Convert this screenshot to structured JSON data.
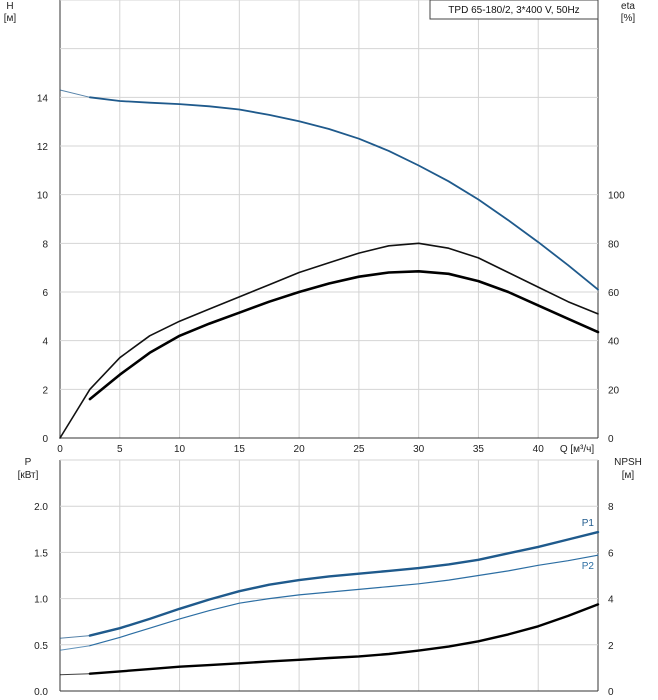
{
  "chart_data": [
    {
      "type": "line",
      "title": "TPD 65-180/2, 3*400 V, 50Hz",
      "xlabel": "Q [м³/ч]",
      "xlim": [
        0,
        45
      ],
      "xticks": [
        0,
        5,
        10,
        15,
        20,
        25,
        30,
        35,
        40
      ],
      "grid": true,
      "left_axis": {
        "label_line1": "H",
        "label_line2": "[м]",
        "ylim": [
          0,
          18
        ],
        "ticks": [
          0,
          2,
          4,
          6,
          8,
          10,
          12,
          14
        ]
      },
      "right_axis": {
        "label_line1": "eta",
        "label_line2": "[%]",
        "ylim": [
          0,
          180
        ],
        "ticks": [
          0,
          20,
          40,
          60,
          80,
          100
        ]
      },
      "series": [
        {
          "name": "",
          "axis": "left",
          "color": "#1f5a8c",
          "points": [
            [
              0,
              14.3
            ],
            [
              2.5,
              14.0
            ],
            [
              5,
              13.85
            ],
            [
              7.5,
              13.78
            ],
            [
              10,
              13.72
            ],
            [
              12.5,
              13.63
            ],
            [
              15,
              13.5
            ],
            [
              17.5,
              13.28
            ],
            [
              20,
              13.02
            ],
            [
              22.5,
              12.7
            ],
            [
              25,
              12.3
            ],
            [
              27.5,
              11.8
            ],
            [
              30,
              11.2
            ],
            [
              32.5,
              10.55
            ],
            [
              35,
              9.8
            ],
            [
              37.5,
              8.95
            ],
            [
              40,
              8.05
            ],
            [
              42.5,
              7.1
            ],
            [
              45,
              6.1
            ]
          ]
        },
        {
          "name": "",
          "axis": "right",
          "color": "#111111",
          "points": [
            [
              0,
              0
            ],
            [
              1,
              8
            ],
            [
              2.5,
              20
            ],
            [
              5,
              33
            ],
            [
              7.5,
              42
            ],
            [
              10,
              48
            ],
            [
              12.5,
              53
            ],
            [
              15,
              58
            ],
            [
              17.5,
              63
            ],
            [
              20,
              68
            ],
            [
              22.5,
              72
            ],
            [
              25,
              76
            ],
            [
              27.5,
              79
            ],
            [
              30,
              80
            ],
            [
              32.5,
              78
            ],
            [
              35,
              74
            ],
            [
              37.5,
              68
            ],
            [
              40,
              62
            ],
            [
              42.5,
              56
            ],
            [
              45,
              51
            ]
          ]
        },
        {
          "name": "",
          "axis": "right",
          "color": "#000000",
          "points": [
            [
              2.5,
              16
            ],
            [
              5,
              26
            ],
            [
              7.5,
              35
            ],
            [
              10,
              42
            ],
            [
              12.5,
              47
            ],
            [
              15,
              51.5
            ],
            [
              17.5,
              56
            ],
            [
              20,
              60
            ],
            [
              22.5,
              63.5
            ],
            [
              25,
              66.3
            ],
            [
              27.5,
              68
            ],
            [
              30,
              68.5
            ],
            [
              32.5,
              67.5
            ],
            [
              35,
              64.5
            ],
            [
              37.5,
              60
            ],
            [
              40,
              54.5
            ],
            [
              42.5,
              49
            ],
            [
              45,
              43.5
            ]
          ]
        }
      ]
    },
    {
      "type": "line",
      "xlim": [
        0,
        45
      ],
      "xticks": [
        0,
        5,
        10,
        15,
        20,
        25,
        30,
        35,
        40
      ],
      "grid": true,
      "left_axis": {
        "label_line1": "P",
        "label_line2": "[кВт]",
        "ylim": [
          0,
          2.5
        ],
        "ticks": [
          "0.0",
          "0.5",
          "1.0",
          "1.5",
          "2.0"
        ]
      },
      "right_axis": {
        "label_line1": "NPSH",
        "label_line2": "[м]",
        "ylim": [
          0,
          10
        ],
        "ticks": [
          0,
          2,
          4,
          6,
          8
        ]
      },
      "series": [
        {
          "name": "P1",
          "axis": "left",
          "color": "#1f5a8c",
          "points": [
            [
              0,
              0.57
            ],
            [
              2.5,
              0.6
            ],
            [
              5,
              0.68
            ],
            [
              7.5,
              0.78
            ],
            [
              10,
              0.89
            ],
            [
              12.5,
              0.99
            ],
            [
              15,
              1.08
            ],
            [
              17.5,
              1.15
            ],
            [
              20,
              1.2
            ],
            [
              22.5,
              1.24
            ],
            [
              25,
              1.27
            ],
            [
              27.5,
              1.3
            ],
            [
              30,
              1.33
            ],
            [
              32.5,
              1.37
            ],
            [
              35,
              1.42
            ],
            [
              37.5,
              1.49
            ],
            [
              40,
              1.56
            ],
            [
              42.5,
              1.64
            ],
            [
              45,
              1.72
            ]
          ]
        },
        {
          "name": "P2",
          "axis": "left",
          "color": "#2c6ea3",
          "points": [
            [
              0,
              0.44
            ],
            [
              2.5,
              0.49
            ],
            [
              5,
              0.58
            ],
            [
              7.5,
              0.68
            ],
            [
              10,
              0.78
            ],
            [
              12.5,
              0.87
            ],
            [
              15,
              0.95
            ],
            [
              17.5,
              1.0
            ],
            [
              20,
              1.04
            ],
            [
              22.5,
              1.07
            ],
            [
              25,
              1.1
            ],
            [
              27.5,
              1.13
            ],
            [
              30,
              1.16
            ],
            [
              32.5,
              1.2
            ],
            [
              35,
              1.25
            ],
            [
              37.5,
              1.3
            ],
            [
              40,
              1.36
            ],
            [
              42.5,
              1.41
            ],
            [
              45,
              1.47
            ]
          ]
        },
        {
          "name": "",
          "axis": "right",
          "color": "#000000",
          "points": [
            [
              0,
              0.7
            ],
            [
              2.5,
              0.75
            ],
            [
              5,
              0.85
            ],
            [
              7.5,
              0.95
            ],
            [
              10,
              1.05
            ],
            [
              12.5,
              1.12
            ],
            [
              15,
              1.2
            ],
            [
              17.5,
              1.28
            ],
            [
              20,
              1.35
            ],
            [
              22.5,
              1.43
            ],
            [
              25,
              1.5
            ],
            [
              27.5,
              1.6
            ],
            [
              30,
              1.75
            ],
            [
              32.5,
              1.92
            ],
            [
              35,
              2.15
            ],
            [
              37.5,
              2.45
            ],
            [
              40,
              2.8
            ],
            [
              42.5,
              3.25
            ],
            [
              45,
              3.75
            ]
          ]
        }
      ]
    }
  ]
}
